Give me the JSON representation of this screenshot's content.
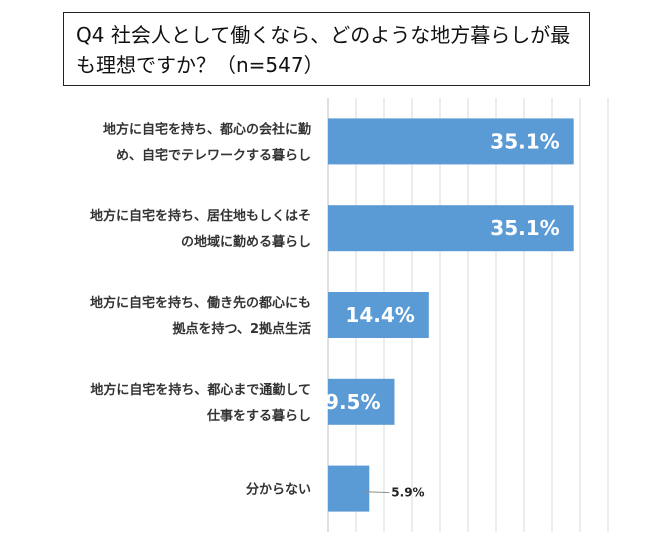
{
  "title": "Q4 社会人として働くなら、どのような地方暮らしが最も理想ですか？（n=547）",
  "colors": {
    "bar": "#5b9bd5",
    "grid": "#d9d9d9",
    "axis": "#bfbfbf"
  },
  "chart_data": {
    "type": "bar",
    "orientation": "horizontal",
    "title": "Q4 社会人として働くなら、どのような地方暮らしが最も理想ですか？（n=547）",
    "categories": [
      [
        "地方に自宅を持ち、都心の会社に勤",
        "め、自宅でテレワークする暮らし"
      ],
      [
        "地方に自宅を持ち、居住地もしくはそ",
        "の地域に勤める暮らし"
      ],
      [
        "地方に自宅を持ち、働き先の都心にも",
        "拠点を持つ、2拠点生活"
      ],
      [
        "地方に自宅を持ち、都心まで通勤して",
        "仕事をする暮らし"
      ],
      [
        "分からない"
      ]
    ],
    "values": [
      35.1,
      35.1,
      14.4,
      9.5,
      5.9
    ],
    "value_labels": [
      "35.1%",
      "35.1%",
      "14.4%",
      "9.5%",
      "5.9%"
    ],
    "xlim": [
      0,
      40
    ],
    "grid": true,
    "legend": "none"
  }
}
